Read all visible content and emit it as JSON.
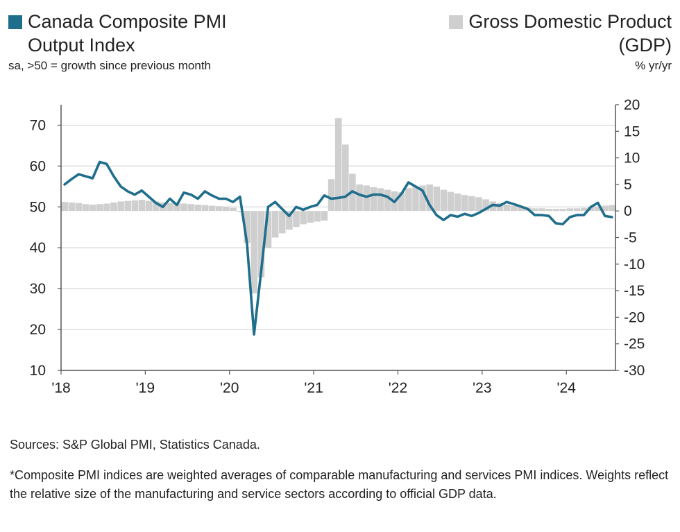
{
  "legend": {
    "pmi_title_line1": "Canada Composite PMI",
    "pmi_title_line2": "Output Index",
    "pmi_subtitle": "sa, >50 = growth since previous month",
    "gdp_title_line1": "Gross Domestic Product",
    "gdp_title_line2": "(GDP)",
    "gdp_subtitle": "% yr/yr"
  },
  "colors": {
    "pmi": "#1f6e8c",
    "gdp": "#cfcfcf",
    "grid": "#d4d4d4",
    "axis": "#555555"
  },
  "footer": {
    "source": "Sources: S&P Global PMI, Statistics Canada.",
    "note": "*Composite PMI indices are weighted averages of comparable manufacturing and services PMI indices. Weights reflect the relative size of the manufacturing and service sectors according to official GDP data."
  },
  "chart_data": {
    "type": "line",
    "x_ticks": [
      "'18",
      "'19",
      "'20",
      "'21",
      "'22",
      "'23",
      "'24"
    ],
    "left_axis": {
      "ticks": [
        10,
        20,
        30,
        40,
        50,
        60,
        70
      ],
      "ylim": [
        10,
        75
      ]
    },
    "right_axis": {
      "ticks": [
        -30,
        -25,
        -20,
        -15,
        -10,
        -5,
        0,
        5,
        10,
        15,
        20
      ],
      "ylim": [
        -30,
        20
      ]
    },
    "grid": true,
    "series": [
      {
        "name": "Canada Composite PMI Output Index",
        "axis": "left",
        "kind": "line",
        "start": "2018-01",
        "values": [
          55.5,
          56.8,
          58.0,
          57.5,
          57.0,
          61.0,
          60.5,
          57.5,
          55.0,
          53.8,
          53.0,
          54.0,
          52.5,
          51.0,
          50.0,
          52.0,
          50.5,
          53.5,
          53.0,
          52.0,
          53.8,
          52.8,
          52.0,
          52.0,
          51.2,
          52.5,
          41.0,
          18.8,
          34.0,
          50.0,
          51.2,
          49.5,
          47.8,
          50.0,
          49.3,
          50.0,
          50.5,
          52.8,
          52.0,
          52.2,
          52.5,
          53.8,
          53.0,
          52.5,
          53.0,
          53.0,
          52.5,
          51.2,
          53.2,
          56.0,
          55.0,
          54.0,
          50.5,
          48.0,
          46.8,
          48.0,
          47.6,
          48.3,
          47.8,
          48.5,
          49.5,
          50.5,
          50.3,
          51.2,
          50.7,
          50.1,
          49.5,
          48.0,
          48.0,
          47.8,
          46.0,
          45.8,
          47.5,
          48.0,
          48.0,
          50.0,
          51.0,
          47.8,
          47.5
        ]
      },
      {
        "name": "Gross Domestic Product (GDP)",
        "axis": "right",
        "kind": "bar",
        "start": "2018-01",
        "values": [
          1.7,
          1.6,
          1.5,
          1.3,
          1.2,
          1.3,
          1.4,
          1.6,
          1.8,
          1.9,
          2.0,
          2.1,
          1.9,
          1.8,
          1.6,
          1.5,
          1.5,
          1.4,
          1.3,
          1.2,
          1.1,
          1.0,
          0.9,
          0.8,
          0.6,
          -0.2,
          -6.0,
          -15.5,
          -12.5,
          -7.0,
          -5.0,
          -4.2,
          -3.5,
          -3.0,
          -2.5,
          -2.2,
          -2.0,
          -1.8,
          6.0,
          17.5,
          12.5,
          7.0,
          5.0,
          4.8,
          4.5,
          4.3,
          4.0,
          3.7,
          3.5,
          4.3,
          4.6,
          4.8,
          5.0,
          4.6,
          4.0,
          3.6,
          3.3,
          3.0,
          2.8,
          2.6,
          2.2,
          1.8,
          1.5,
          1.2,
          1.0,
          0.8,
          0.6,
          0.5,
          0.5,
          0.4,
          0.4,
          0.4,
          0.5,
          0.5,
          0.6,
          0.7,
          0.8,
          1.0,
          1.1
        ]
      }
    ]
  }
}
